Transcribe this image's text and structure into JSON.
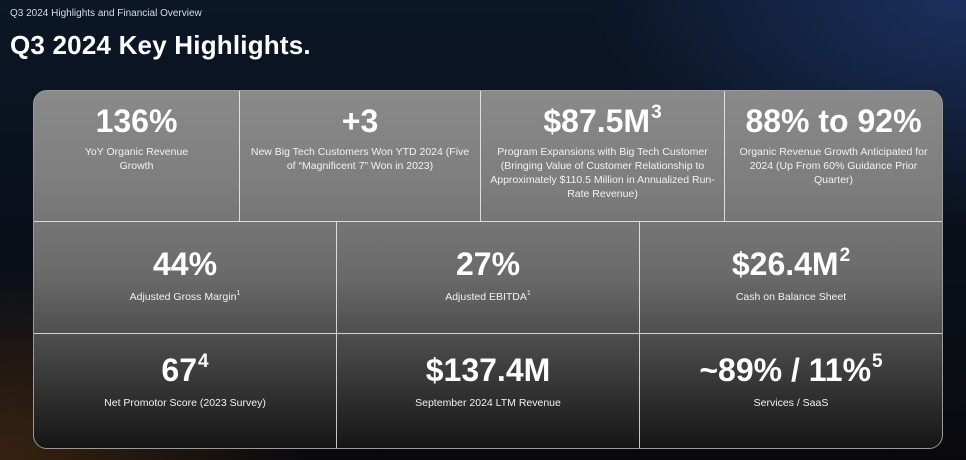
{
  "header": {
    "eyebrow": "Q3 2024 Highlights and Financial Overview",
    "title": "Q3 2024 Key Highlights."
  },
  "highlights": {
    "row1": [
      {
        "value": "136%",
        "sup": "",
        "desc": "YoY Organic Revenue Growth"
      },
      {
        "value": "+3",
        "sup": "",
        "desc": "New Big Tech Customers Won YTD 2024 (Five of “Magnificent 7” Won in 2023)"
      },
      {
        "value": "$87.5M",
        "sup": "3",
        "desc": "Program Expansions with Big Tech Customer (Bringing Value of Customer Relationship to Approximately $110.5 Million in Annualized Run-Rate Revenue)"
      },
      {
        "value": "88% to 92%",
        "sup": "",
        "desc": "Organic Revenue Growth Anticipated for 2024 (Up From 60% Guidance Prior Quarter)"
      }
    ],
    "row2": [
      {
        "value": "44%",
        "sup": "",
        "desc": "Adjusted Gross Margin",
        "fn": "1"
      },
      {
        "value": "27%",
        "sup": "",
        "desc": "Adjusted EBITDA",
        "fn": "1"
      },
      {
        "value": "$26.4M",
        "sup": "2",
        "desc": "Cash on Balance Sheet",
        "fn": ""
      }
    ],
    "row3": [
      {
        "value": "67",
        "sup": "4",
        "desc": "Net Promotor Score (2023 Survey)"
      },
      {
        "value": "$137.4M",
        "sup": "",
        "desc": "September 2024 LTM Revenue"
      },
      {
        "value": "~89% / 11%",
        "sup": "5",
        "desc": "Services / SaaS"
      }
    ]
  }
}
